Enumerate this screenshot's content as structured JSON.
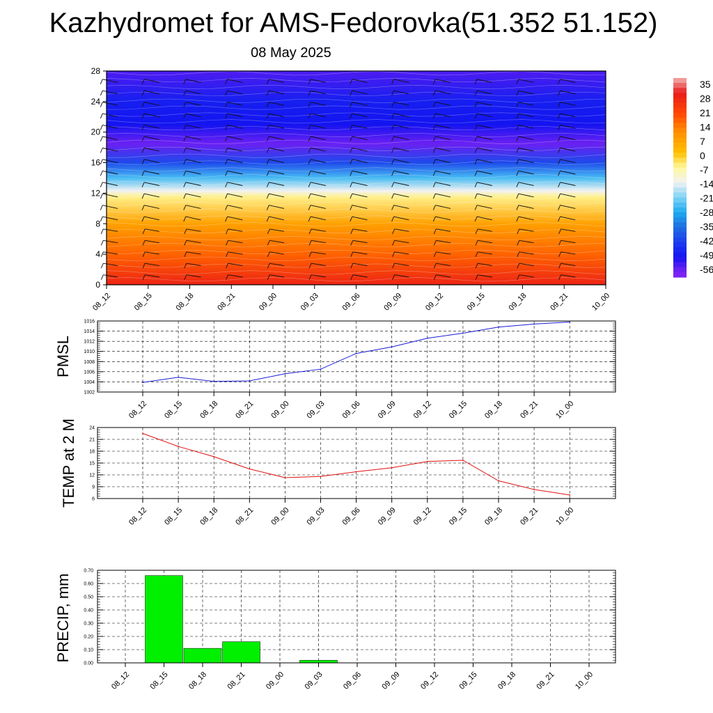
{
  "title": "Kazhydromet for AMS-Fedorovka(51.352 51.152)",
  "subtitle": "08 May 2025",
  "time_labels": [
    "08_12",
    "08_15",
    "08_18",
    "08_21",
    "09_00",
    "09_03",
    "09_06",
    "09_09",
    "09_12",
    "09_15",
    "09_18",
    "09_21",
    "10_00"
  ],
  "chart_data": [
    {
      "type": "heatmap",
      "name": "temperature-wind-cross-section",
      "x": [
        "08_12",
        "08_15",
        "08_18",
        "08_21",
        "09_00",
        "09_03",
        "09_06",
        "09_09",
        "09_12",
        "09_15",
        "09_18",
        "09_21",
        "10_00"
      ],
      "ylim": [
        0,
        28
      ],
      "yticks": [
        0,
        4,
        8,
        12,
        16,
        20,
        24,
        28
      ],
      "colorbar": {
        "labels": [
          "35",
          "28",
          "21",
          "14",
          "7",
          "0",
          "-7",
          "-14",
          "-21",
          "-28",
          "-35",
          "-42",
          "-49",
          "-56"
        ],
        "stops": [
          {
            "value": 35,
            "color": "#f4b4b4"
          },
          {
            "value": 28,
            "color": "#e81a1a"
          },
          {
            "value": 18,
            "color": "#ff4a00"
          },
          {
            "value": 10,
            "color": "#ff8c00"
          },
          {
            "value": 0,
            "color": "#ffc000"
          },
          {
            "value": -7,
            "color": "#fff8a0"
          },
          {
            "value": -14,
            "color": "#f2f2f2"
          },
          {
            "value": -21,
            "color": "#7fd4f5"
          },
          {
            "value": -28,
            "color": "#1eaaf0"
          },
          {
            "value": -35,
            "color": "#1f6de0"
          },
          {
            "value": -42,
            "color": "#1c3cf0"
          },
          {
            "value": -49,
            "color": "#1414f0"
          },
          {
            "value": -56,
            "color": "#7a22f2"
          }
        ]
      },
      "profile": [
        {
          "h": 0,
          "t": 26
        },
        {
          "h": 4,
          "t": 15
        },
        {
          "h": 8,
          "t": 6
        },
        {
          "h": 11.5,
          "t": -6
        },
        {
          "h": 12.3,
          "t": -14
        },
        {
          "h": 14,
          "t": -25
        },
        {
          "h": 16,
          "t": -40
        },
        {
          "h": 18.5,
          "t": -55
        },
        {
          "h": 21,
          "t": -49
        },
        {
          "h": 24,
          "t": -47
        },
        {
          "h": 28,
          "t": -53
        }
      ],
      "wind_barbs": true
    },
    {
      "type": "line",
      "name": "pmsl",
      "ylabel": "PMSL",
      "ylim": [
        1002,
        1016
      ],
      "yticks": [
        1002,
        1004,
        1006,
        1008,
        1010,
        1012,
        1014,
        1016
      ],
      "grid": true,
      "color": "#1a1ad6",
      "x": [
        "08_12",
        "08_15",
        "08_18",
        "08_21",
        "09_00",
        "09_03",
        "09_06",
        "09_09",
        "09_12",
        "09_15",
        "09_18",
        "09_21",
        "10_00"
      ],
      "values": [
        1003.9,
        1004.9,
        1004.1,
        1004.2,
        1005.6,
        1006.5,
        1009.6,
        1010.9,
        1012.6,
        1013.6,
        1014.8,
        1015.4,
        1015.8
      ]
    },
    {
      "type": "line",
      "name": "temp-2m",
      "ylabel": "TEMP at 2 M",
      "ylim": [
        6,
        24
      ],
      "yticks": [
        6,
        9,
        12,
        15,
        18,
        21,
        24
      ],
      "grid": true,
      "color": "#e01010",
      "x": [
        "08_12",
        "08_15",
        "08_18",
        "08_21",
        "09_00",
        "09_03",
        "09_06",
        "09_09",
        "09_12",
        "09_15",
        "09_18",
        "09_21",
        "10_00"
      ],
      "values": [
        22.5,
        19.2,
        16.6,
        13.5,
        11.3,
        11.6,
        12.8,
        13.8,
        15.4,
        15.7,
        10.5,
        8.3,
        6.9
      ]
    },
    {
      "type": "bar",
      "name": "precip",
      "ylabel": "PRECIP, mm",
      "ylim": [
        0,
        0.7
      ],
      "yticks": [
        "0.00",
        "0.10",
        "0.20",
        "0.30",
        "0.40",
        "0.50",
        "0.60",
        "0.70"
      ],
      "grid": true,
      "color": "#00f000",
      "categories": [
        "08_12",
        "08_15",
        "08_18",
        "08_21",
        "09_00",
        "09_03",
        "09_06",
        "09_09",
        "09_12",
        "09_15",
        "09_18",
        "09_21",
        "10_00"
      ],
      "values": [
        0,
        0.66,
        0.11,
        0.16,
        0,
        0.02,
        0,
        0,
        0,
        0,
        0,
        0,
        0
      ]
    }
  ]
}
